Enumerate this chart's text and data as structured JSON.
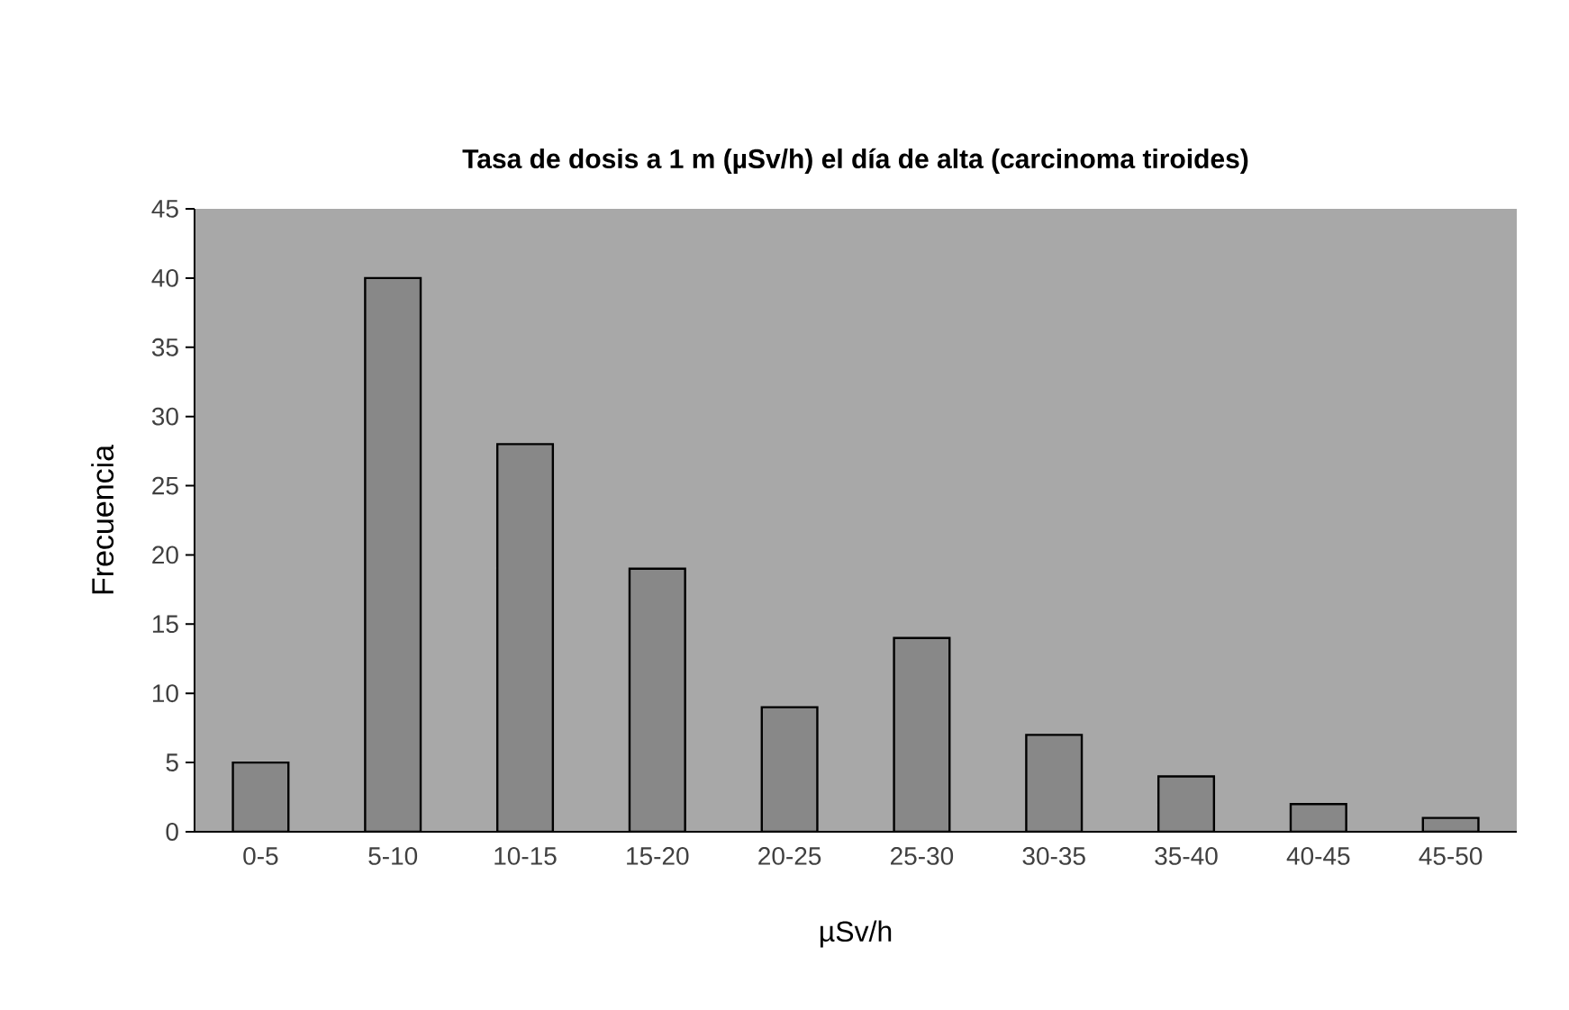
{
  "chart_data": {
    "type": "bar",
    "title": "Tasa de dosis a 1 m (µSv/h) el día de alta (carcinoma tiroides)",
    "xlabel": "µSv/h",
    "ylabel": "Frecuencia",
    "categories": [
      "0-5",
      "5-10",
      "10-15",
      "15-20",
      "20-25",
      "25-30",
      "30-35",
      "35-40",
      "40-45",
      "45-50"
    ],
    "values": [
      5,
      40,
      28,
      19,
      9,
      14,
      7,
      4,
      2,
      1
    ],
    "color": "#888888",
    "ylim": [
      0,
      45
    ],
    "yticks": [
      0,
      5,
      10,
      15,
      20,
      25,
      30,
      35,
      40,
      45
    ],
    "grid": false
  }
}
